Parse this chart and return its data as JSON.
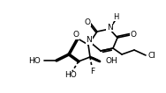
{
  "bg": "#ffffff",
  "col": "#000000",
  "lw": 1.2,
  "fs": 6.5,
  "dpi": 100,
  "fw": 1.88,
  "fh": 1.06,
  "xlim": [
    0,
    188
  ],
  "ylim": [
    0,
    106
  ],
  "N1": [
    102,
    58
  ],
  "C2": [
    110,
    70
  ],
  "N3": [
    124,
    73
  ],
  "C4": [
    133,
    63
  ],
  "C5": [
    128,
    51
  ],
  "C6": [
    114,
    48
  ],
  "O2x": 103,
  "O2y": 79,
  "O4x": 147,
  "O4y": 66,
  "NHx": 130,
  "NHy": 82,
  "ce1x": 138,
  "ce1y": 44,
  "ce2x": 152,
  "ce2y": 49,
  "clx": 165,
  "cly": 43,
  "O4p": [
    88,
    62
  ],
  "C1p": [
    100,
    55
  ],
  "C2p": [
    102,
    41
  ],
  "C3p": [
    89,
    36
  ],
  "C4p": [
    78,
    44
  ],
  "Fx": 104,
  "Fy": 30,
  "OH2x": 113,
  "OH2y": 36,
  "OH3x": 82,
  "OH3y": 25,
  "C5px": 64,
  "C5py": 37,
  "HO5x": 50,
  "HO5y": 37
}
